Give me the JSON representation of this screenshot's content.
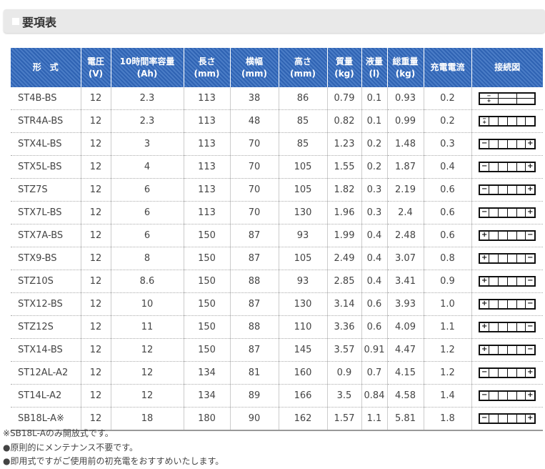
{
  "title": "要項表",
  "headers": [
    [
      "形　式",
      ""
    ],
    [
      "電圧",
      "(V)"
    ],
    [
      "10時間率容量",
      "(Ah)"
    ],
    [
      "長さ",
      "(mm)"
    ],
    [
      "横幅",
      "(mm)"
    ],
    [
      "高さ",
      "(mm)"
    ],
    [
      "質量",
      "(kg)"
    ],
    [
      "液量",
      "(l)"
    ],
    [
      "総重量",
      "(kg)"
    ],
    [
      "充電電流",
      ""
    ],
    [
      "接続図",
      ""
    ]
  ],
  "rows": [
    [
      "ST4B-BS",
      "12",
      "2.3",
      "113",
      "38",
      "86",
      "0.79",
      "0.1",
      "0.93",
      "0.2",
      "split-3"
    ],
    [
      "STR4A-BS",
      "12",
      "2.3",
      "113",
      "48",
      "85",
      "0.82",
      "0.1",
      "0.99",
      "0.2",
      "stacked-left"
    ],
    [
      "STX4L-BS",
      "12",
      "3",
      "113",
      "70",
      "85",
      "1.23",
      "0.2",
      "1.48",
      "0.3",
      "minus-left"
    ],
    [
      "STX5L-BS",
      "12",
      "4",
      "113",
      "70",
      "105",
      "1.55",
      "0.2",
      "1.87",
      "0.4",
      "minus-left"
    ],
    [
      "STZ7S",
      "12",
      "6",
      "113",
      "70",
      "105",
      "1.82",
      "0.3",
      "2.19",
      "0.6",
      "minus-left"
    ],
    [
      "STX7L-BS",
      "12",
      "6",
      "113",
      "70",
      "130",
      "1.96",
      "0.3",
      "2.4",
      "0.6",
      "minus-left"
    ],
    [
      "STX7A-BS",
      "12",
      "6",
      "150",
      "87",
      "93",
      "1.99",
      "0.4",
      "2.48",
      "0.6",
      "plus-left"
    ],
    [
      "STX9-BS",
      "12",
      "8",
      "150",
      "87",
      "105",
      "2.49",
      "0.4",
      "3.07",
      "0.8",
      "plus-left"
    ],
    [
      "STZ10S",
      "12",
      "8.6",
      "150",
      "88",
      "93",
      "2.85",
      "0.4",
      "3.41",
      "0.9",
      "plus-left"
    ],
    [
      "STX12-BS",
      "12",
      "10",
      "150",
      "87",
      "130",
      "3.14",
      "0.6",
      "3.93",
      "1.0",
      "plus-left"
    ],
    [
      "STZ12S",
      "12",
      "11",
      "150",
      "88",
      "110",
      "3.36",
      "0.6",
      "4.09",
      "1.1",
      "plus-left"
    ],
    [
      "STX14-BS",
      "12",
      "12",
      "150",
      "87",
      "145",
      "3.57",
      "0.91",
      "4.47",
      "1.2",
      "plus-left"
    ],
    [
      "ST12AL-A2",
      "12",
      "12",
      "134",
      "81",
      "160",
      "0.9",
      "0.7",
      "4.15",
      "1.2",
      "minus-left"
    ],
    [
      "ST14L-A2",
      "12",
      "12",
      "134",
      "89",
      "166",
      "3.5",
      "0.84",
      "4.58",
      "1.4",
      "minus-left"
    ],
    [
      "SB18L-A※",
      "12",
      "18",
      "180",
      "90",
      "162",
      "1.57",
      "1.1",
      "5.81",
      "1.8",
      "minus-left"
    ]
  ],
  "notes": [
    "※SB18L-Aのみ開放式です。",
    "●原則的にメンテナンス不要です。",
    "●即用式ですがご使用前の初充電をおすすめいたします。"
  ],
  "colors": {
    "header": "#2f63b3",
    "banner": "#e9e9e9"
  }
}
